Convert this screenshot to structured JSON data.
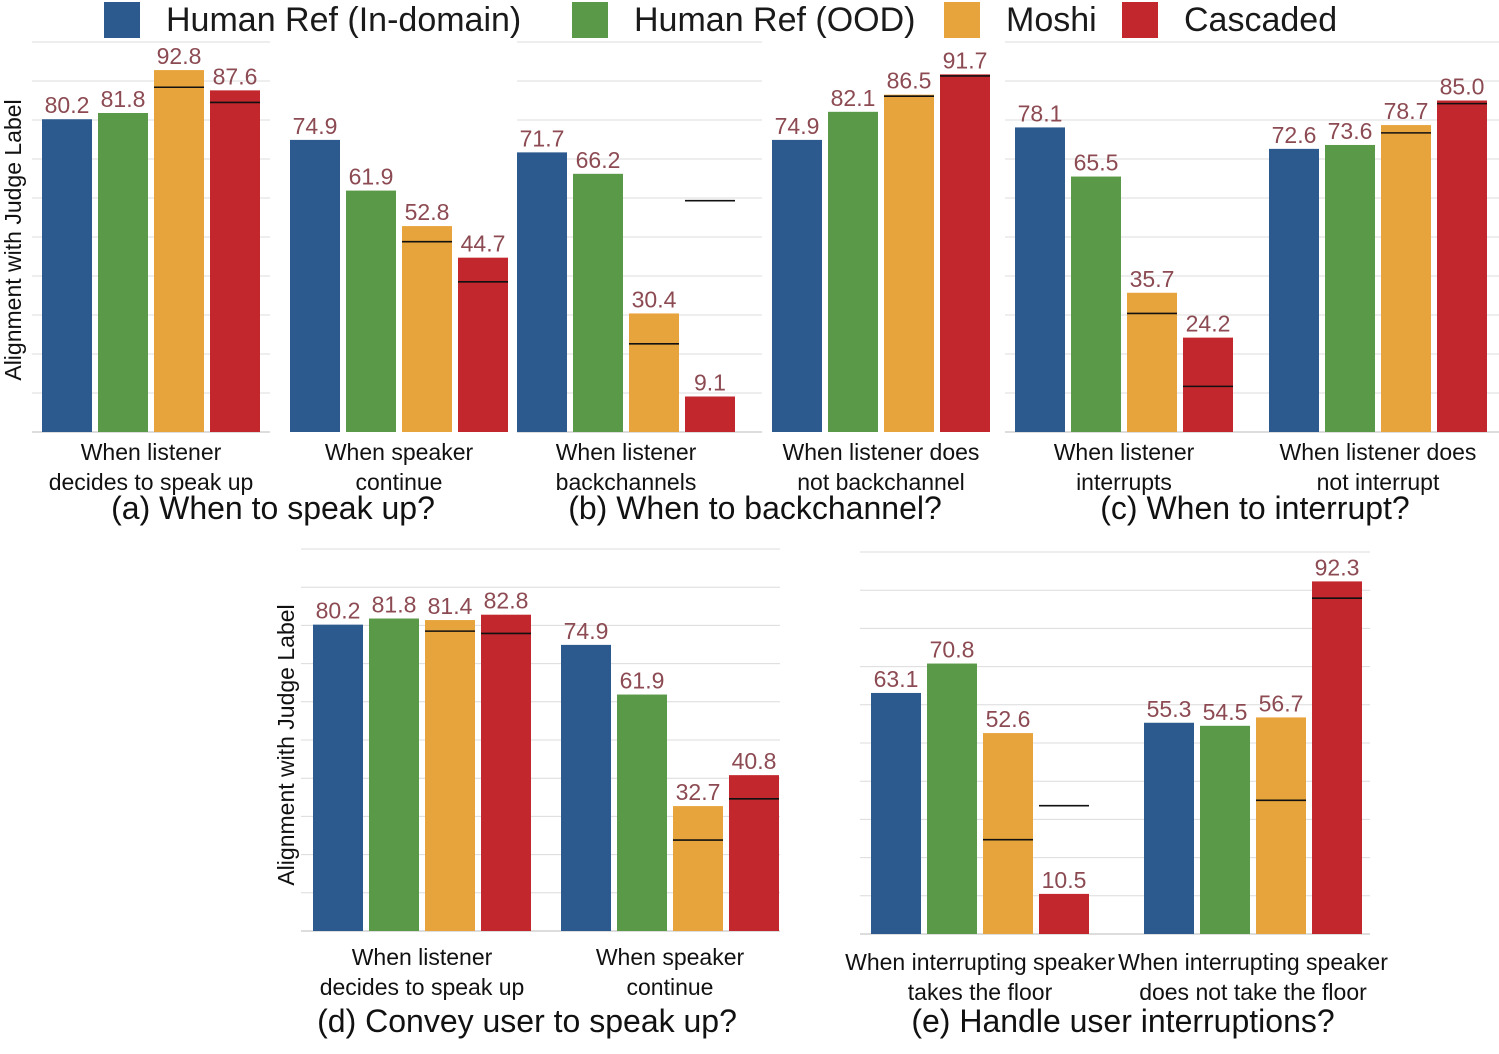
{
  "legend": [
    {
      "name": "Human Ref (In-domain)",
      "color": "#2d5a8e"
    },
    {
      "name": "Human Ref (OOD)",
      "color": "#5a9947"
    },
    {
      "name": "Moshi",
      "color": "#e8a43c"
    },
    {
      "name": "Cascaded",
      "color": "#c1272d"
    }
  ],
  "chart_data": [
    {
      "type": "bar",
      "title": "(a) When to speak up?",
      "ylabel": "Alignment with Judge Label",
      "ylim": [
        0,
        100
      ],
      "groups": [
        {
          "category": "When listener decides to speak up",
          "values": [
            80.2,
            81.8,
            92.8,
            87.6
          ],
          "reference": [
            null,
            null,
            88.4,
            84.5
          ]
        },
        {
          "category": "When speaker continue",
          "values": [
            74.9,
            61.9,
            52.8,
            44.7
          ],
          "reference": [
            null,
            null,
            48.8,
            38.5
          ]
        }
      ]
    },
    {
      "type": "bar",
      "title": "(b) When to backchannel?",
      "ylim": [
        0,
        100
      ],
      "groups": [
        {
          "category": "When listener backchannels",
          "values": [
            71.7,
            66.2,
            30.4,
            9.1
          ],
          "reference": [
            null,
            null,
            22.6,
            59.3
          ]
        },
        {
          "category": "When listener does not backchannel",
          "values": [
            74.9,
            82.1,
            86.5,
            91.7
          ],
          "reference": [
            null,
            null,
            86.1,
            91.3
          ]
        }
      ]
    },
    {
      "type": "bar",
      "title": "(c) When to interrupt?",
      "ylim": [
        0,
        100
      ],
      "groups": [
        {
          "category": "When listener interrupts",
          "values": [
            78.1,
            65.5,
            35.7,
            24.2
          ],
          "reference": [
            null,
            null,
            30.4,
            11.7
          ]
        },
        {
          "category": "When listener does not interrupt",
          "values": [
            72.6,
            73.6,
            78.7,
            85.0
          ],
          "reference": [
            null,
            null,
            76.7,
            84.2
          ]
        }
      ]
    },
    {
      "type": "bar",
      "title": "(d) Convey user to speak up?",
      "ylabel": "Alignment with Judge Label",
      "ylim": [
        0,
        100
      ],
      "groups": [
        {
          "category": "When listener decides to speak up",
          "values": [
            80.2,
            81.8,
            81.4,
            82.8
          ],
          "reference": [
            null,
            null,
            78.5,
            77.9
          ]
        },
        {
          "category": "When speaker continue",
          "values": [
            74.9,
            61.9,
            32.7,
            40.8
          ],
          "reference": [
            null,
            null,
            23.8,
            34.6
          ]
        }
      ]
    },
    {
      "type": "bar",
      "title": "(e) Handle user interruptions?",
      "ylim": [
        0,
        100
      ],
      "groups": [
        {
          "category": "When interrupting speaker takes the floor",
          "values": [
            63.1,
            70.8,
            52.6,
            10.5
          ],
          "reference": [
            null,
            null,
            24.7,
            33.6
          ]
        },
        {
          "category": "When interrupting speaker does not take the floor",
          "values": [
            55.3,
            54.5,
            56.7,
            92.3
          ],
          "reference": [
            null,
            null,
            35.0,
            87.9
          ]
        }
      ]
    }
  ]
}
